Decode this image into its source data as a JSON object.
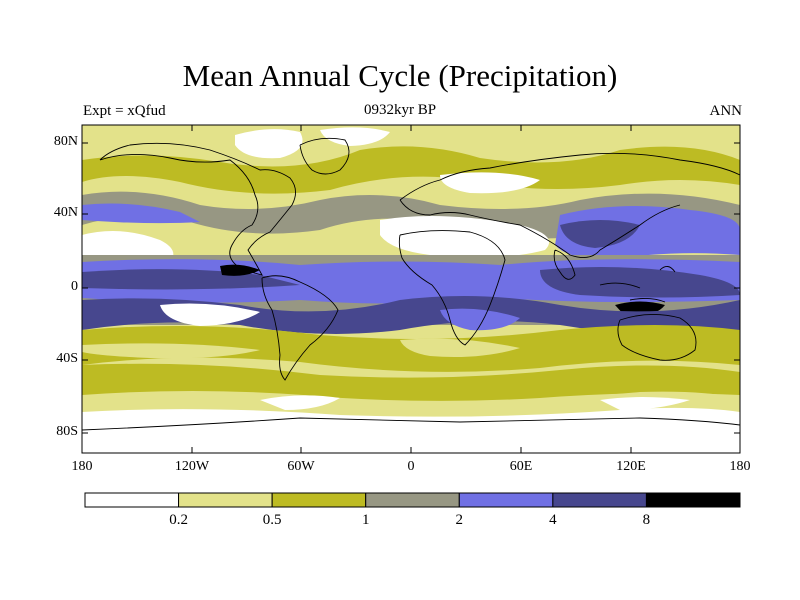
{
  "title": "Mean Annual Cycle (Precipitation)",
  "subtitle": "0932kyr BP",
  "left_label": "Expt = xQfud",
  "right_label": "ANN",
  "lat_labels": [
    "80N",
    "40N",
    "0",
    "40S",
    "80S"
  ],
  "lon_labels": [
    "180",
    "120W",
    "60W",
    "0",
    "60E",
    "120E",
    "180"
  ],
  "colorbar": {
    "colors": [
      "#ffffff",
      "#e3e28a",
      "#bdbb23",
      "#979783",
      "#7070e4",
      "#47478e",
      "#000000"
    ],
    "labels": [
      "0.2",
      "0.5",
      "1",
      "2",
      "4",
      "8"
    ]
  }
}
